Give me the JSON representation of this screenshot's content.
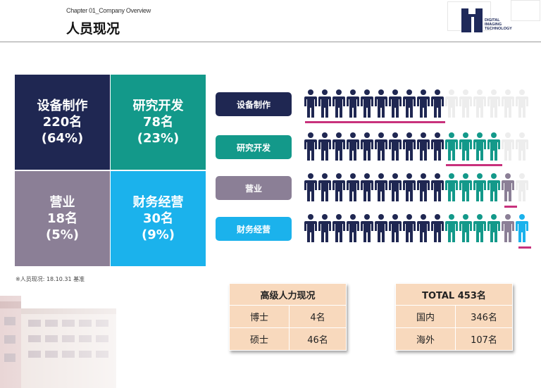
{
  "header": {
    "chapter": "Chapter 01_Company Overview",
    "title": "人员现况",
    "logo_text": [
      "DIGITAL",
      "IMAGING",
      "TECHNOLOGY"
    ]
  },
  "tiles": [
    {
      "name": "设备制作",
      "count": "220名",
      "pct": "(64%)",
      "color": "#1f2752"
    },
    {
      "name": "研究开发",
      "count": "78名",
      "pct": "(23%)",
      "color": "#13998a"
    },
    {
      "name": "营业",
      "count": "18名",
      "pct": "(5%)",
      "color": "#8b7f96"
    },
    {
      "name": "财务经营",
      "count": "30名",
      "pct": "(9%)",
      "color": "#1bb2ec"
    }
  ],
  "note": "※人员现况: 18.10.31 基准",
  "pictogram": {
    "rows": [
      {
        "label": "设备制作",
        "color": "#1f2752",
        "units": [
          "navy",
          "navy",
          "navy",
          "navy",
          "navy",
          "navy",
          "navy",
          "navy",
          "navy",
          "navy",
          "empty",
          "empty",
          "empty",
          "empty",
          "empty",
          "empty"
        ]
      },
      {
        "label": "研究开发",
        "color": "#13998a",
        "units": [
          "navy",
          "navy",
          "navy",
          "navy",
          "navy",
          "navy",
          "navy",
          "navy",
          "navy",
          "navy",
          "teal",
          "teal",
          "teal",
          "teal",
          "empty",
          "empty"
        ]
      },
      {
        "label": "营业",
        "color": "#8b7f96",
        "units": [
          "navy",
          "navy",
          "navy",
          "navy",
          "navy",
          "navy",
          "navy",
          "navy",
          "navy",
          "navy",
          "teal",
          "teal",
          "teal",
          "teal",
          "gray",
          "empty"
        ]
      },
      {
        "label": "财务经营",
        "color": "#1bb2ec",
        "units": [
          "navy",
          "navy",
          "navy",
          "navy",
          "navy",
          "navy",
          "navy",
          "navy",
          "navy",
          "navy",
          "teal",
          "teal",
          "teal",
          "teal",
          "gray",
          "blue"
        ]
      }
    ],
    "colors": {
      "navy": "#1f2752",
      "teal": "#13998a",
      "gray": "#8b7f96",
      "blue": "#1bb2ec",
      "empty": "#ededed",
      "underline": "#c8317c"
    }
  },
  "advanced_table": {
    "title": "高级人力现况",
    "rows": [
      {
        "label": "博士",
        "value": "4名"
      },
      {
        "label": "硕士",
        "value": "46名"
      }
    ]
  },
  "total_table": {
    "title": "TOTAL 453名",
    "rows": [
      {
        "label": "国内",
        "value": "346名"
      },
      {
        "label": "海外",
        "value": "107名"
      }
    ]
  }
}
